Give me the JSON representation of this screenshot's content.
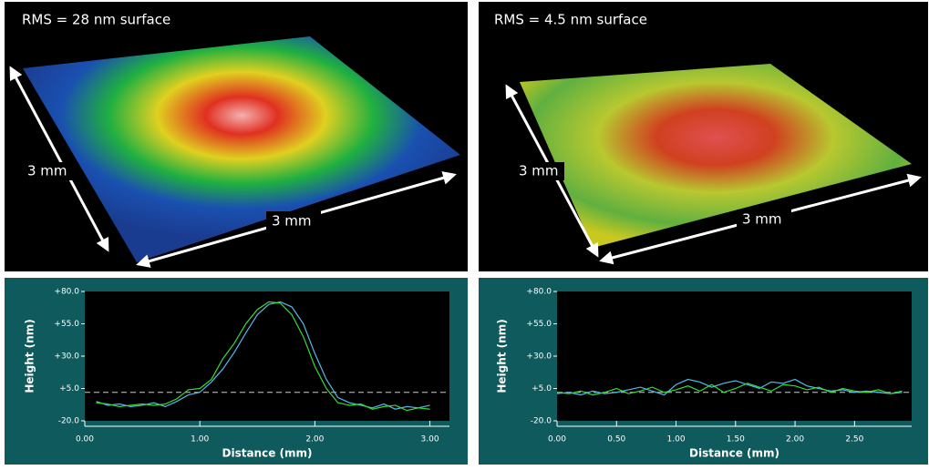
{
  "panels": [
    {
      "title": "RMS = 28 nm surface",
      "labels": [
        "3 mm",
        "3 mm"
      ]
    },
    {
      "title": "RMS = 4.5 nm surface",
      "labels": [
        "3 mm",
        "3 mm"
      ]
    }
  ],
  "chart_data": [
    {
      "type": "line",
      "xlabel": "Distance (mm)",
      "ylabel": "Height (nm)",
      "x": [
        0.1,
        0.2,
        0.3,
        0.4,
        0.5,
        0.6,
        0.7,
        0.8,
        0.9,
        1.0,
        1.1,
        1.2,
        1.3,
        1.4,
        1.5,
        1.6,
        1.7,
        1.8,
        1.9,
        2.0,
        2.1,
        2.2,
        2.3,
        2.4,
        2.5,
        2.6,
        2.7,
        2.8,
        2.9,
        3.0
      ],
      "series": [
        {
          "color": "#55b8e8",
          "values": [
            -5,
            -8,
            -7,
            -9,
            -8,
            -6,
            -9,
            -5,
            0,
            2,
            10,
            20,
            33,
            48,
            62,
            70,
            72,
            68,
            55,
            32,
            12,
            -2,
            -6,
            -8,
            -10,
            -7,
            -11,
            -9,
            -10,
            -8
          ]
        },
        {
          "color": "#33dd33",
          "values": [
            -6,
            -7,
            -9,
            -8,
            -7,
            -8,
            -7,
            -3,
            4,
            5,
            12,
            28,
            40,
            55,
            66,
            72,
            71,
            62,
            45,
            22,
            5,
            -6,
            -8,
            -7,
            -11,
            -9,
            -8,
            -12,
            -10,
            -11
          ]
        }
      ],
      "reference_line": 2,
      "xlim": [
        0,
        3.17
      ],
      "ylim": [
        -20,
        80
      ],
      "xticks": [
        {
          "value": 0,
          "label": "0.00"
        },
        {
          "value": 1,
          "label": "1.00"
        },
        {
          "value": 2,
          "label": "2.00"
        },
        {
          "value": 3,
          "label": "3.00"
        }
      ],
      "yticks": [
        {
          "value": 80,
          "label": "+80.0"
        },
        {
          "value": 55,
          "label": "+55.0"
        },
        {
          "value": 30,
          "label": "+30.0"
        },
        {
          "value": 5,
          "label": "+5.0"
        },
        {
          "value": -20,
          "label": "-20.0"
        }
      ]
    },
    {
      "type": "line",
      "xlabel": "Distance (mm)",
      "ylabel": "Height (nm)",
      "x": [
        0.0,
        0.1,
        0.2,
        0.3,
        0.4,
        0.5,
        0.6,
        0.7,
        0.8,
        0.9,
        1.0,
        1.1,
        1.2,
        1.3,
        1.4,
        1.5,
        1.6,
        1.7,
        1.8,
        1.9,
        2.0,
        2.1,
        2.2,
        2.3,
        2.4,
        2.5,
        2.6,
        2.7,
        2.8,
        2.9
      ],
      "series": [
        {
          "color": "#55b8e8",
          "values": [
            1,
            2,
            0,
            3,
            1,
            2,
            4,
            6,
            3,
            0,
            8,
            12,
            10,
            6,
            9,
            11,
            8,
            5,
            10,
            9,
            12,
            7,
            5,
            3,
            4,
            2,
            3,
            2,
            1,
            2
          ]
        },
        {
          "color": "#33dd33",
          "values": [
            2,
            1,
            3,
            0,
            2,
            5,
            1,
            3,
            6,
            2,
            4,
            7,
            3,
            8,
            2,
            5,
            9,
            6,
            3,
            8,
            7,
            4,
            6,
            2,
            5,
            3,
            2,
            4,
            1,
            3
          ]
        }
      ],
      "reference_line": 2,
      "xlim": [
        0,
        2.98
      ],
      "ylim": [
        -20,
        80
      ],
      "xticks": [
        {
          "value": 0,
          "label": "0.00"
        },
        {
          "value": 0.5,
          "label": "0.50"
        },
        {
          "value": 1,
          "label": "1.00"
        },
        {
          "value": 1.5,
          "label": "1.50"
        },
        {
          "value": 2,
          "label": "2.00"
        },
        {
          "value": 2.5,
          "label": "2.50"
        }
      ],
      "yticks": [
        {
          "value": 80,
          "label": "+80.0"
        },
        {
          "value": 55,
          "label": "+55.0"
        },
        {
          "value": 30,
          "label": "+30.0"
        },
        {
          "value": 5,
          "label": "+5.0"
        },
        {
          "value": -20,
          "label": "-20.0"
        }
      ]
    }
  ]
}
